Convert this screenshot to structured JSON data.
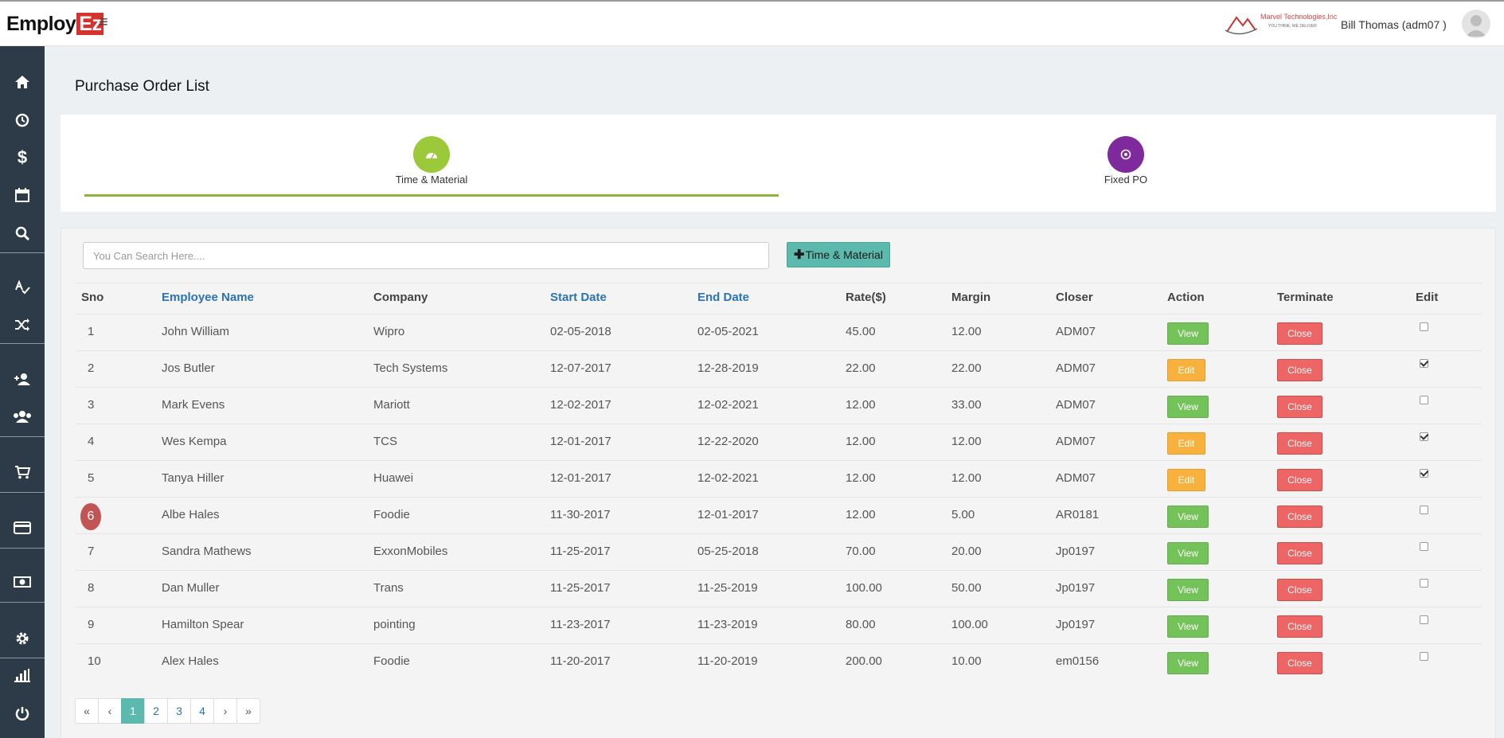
{
  "brand": {
    "logo_main": "Employ",
    "logo_accent": "Ez"
  },
  "header": {
    "company_name": "Marvel Technologies,Inc",
    "company_tagline": "YOU THINK, WE DELIVER",
    "user_name": "Bill Thomas (adm07 )"
  },
  "sidebar": {
    "items": [
      "home-icon",
      "clock-icon",
      "dollar-icon",
      "calendar-icon",
      "search-icon",
      "spell-check-icon",
      "shuffle-icon",
      "add-user-icon",
      "users-icon",
      "cart-icon",
      "credit-card-icon",
      "money-icon",
      "gear-icon",
      "bar-chart-icon",
      "power-icon"
    ]
  },
  "page": {
    "title": "Purchase Order List"
  },
  "tabs": [
    {
      "label": "Time & Material",
      "color": "#9bc93a",
      "active": true
    },
    {
      "label": "Fixed PO",
      "color": "#7e2a9c",
      "active": false
    }
  ],
  "search": {
    "placeholder": "You Can Search Here....",
    "value": ""
  },
  "add_button": {
    "label": "Time & Material"
  },
  "table": {
    "headers": {
      "sno": "Sno",
      "employee": "Employee Name",
      "company": "Company",
      "start": "Start Date",
      "end": "End Date",
      "rate": "Rate($)",
      "margin": "Margin",
      "closer": "Closer",
      "action": "Action",
      "terminate": "Terminate",
      "edit": "Edit"
    },
    "rows": [
      {
        "sno": "1",
        "employee": "John William",
        "company": "Wipro",
        "start": "02-05-2018",
        "end": "02-05-2021",
        "rate": "45.00",
        "margin": "12.00",
        "closer": "ADM07",
        "action": "View",
        "terminate": "Close",
        "edit_checked": false,
        "highlight": false
      },
      {
        "sno": "2",
        "employee": "Jos Butler",
        "company": "Tech Systems",
        "start": "12-07-2017",
        "end": "12-28-2019",
        "rate": "22.00",
        "margin": "22.00",
        "closer": "ADM07",
        "action": "Edit",
        "terminate": "Close",
        "edit_checked": true,
        "highlight": false
      },
      {
        "sno": "3",
        "employee": "Mark Evens",
        "company": "Mariott",
        "start": "12-02-2017",
        "end": "12-02-2021",
        "rate": "12.00",
        "margin": "33.00",
        "closer": "ADM07",
        "action": "View",
        "terminate": "Close",
        "edit_checked": false,
        "highlight": false
      },
      {
        "sno": "4",
        "employee": "Wes Kempa",
        "company": "TCS",
        "start": "12-01-2017",
        "end": "12-22-2020",
        "rate": "12.00",
        "margin": "12.00",
        "closer": "ADM07",
        "action": "Edit",
        "terminate": "Close",
        "edit_checked": true,
        "highlight": false
      },
      {
        "sno": "5",
        "employee": "Tanya Hiller",
        "company": "Huawei",
        "start": "12-01-2017",
        "end": "12-02-2021",
        "rate": "12.00",
        "margin": "12.00",
        "closer": "ADM07",
        "action": "Edit",
        "terminate": "Close",
        "edit_checked": true,
        "highlight": false
      },
      {
        "sno": "6",
        "employee": "Albe Hales",
        "company": "Foodie",
        "start": "11-30-2017",
        "end": "12-01-2017",
        "rate": "12.00",
        "margin": "5.00",
        "closer": "AR0181",
        "action": "View",
        "terminate": "Close",
        "edit_checked": false,
        "highlight": true
      },
      {
        "sno": "7",
        "employee": "Sandra Mathews",
        "company": "ExxonMobiles",
        "start": "11-25-2017",
        "end": "05-25-2018",
        "rate": "70.00",
        "margin": "20.00",
        "closer": "Jp0197",
        "action": "View",
        "terminate": "Close",
        "edit_checked": false,
        "highlight": false
      },
      {
        "sno": "8",
        "employee": "Dan Muller",
        "company": "Trans",
        "start": "11-25-2017",
        "end": "11-25-2019",
        "rate": "100.00",
        "margin": "50.00",
        "closer": "Jp0197",
        "action": "View",
        "terminate": "Close",
        "edit_checked": false,
        "highlight": false
      },
      {
        "sno": "9",
        "employee": "Hamilton Spear",
        "company": "pointing",
        "start": "11-23-2017",
        "end": "11-23-2019",
        "rate": "80.00",
        "margin": "100.00",
        "closer": "Jp0197",
        "action": "View",
        "terminate": "Close",
        "edit_checked": false,
        "highlight": false
      },
      {
        "sno": "10",
        "employee": "Alex Hales",
        "company": "Foodie",
        "start": "11-20-2017",
        "end": "11-20-2019",
        "rate": "200.00",
        "margin": "10.00",
        "closer": "em0156",
        "action": "View",
        "terminate": "Close",
        "edit_checked": false,
        "highlight": false
      }
    ]
  },
  "pagination": {
    "items": [
      {
        "label": "«",
        "kind": "first"
      },
      {
        "label": "‹",
        "kind": "prev"
      },
      {
        "label": "1",
        "kind": "page",
        "active": true
      },
      {
        "label": "2",
        "kind": "page"
      },
      {
        "label": "3",
        "kind": "page"
      },
      {
        "label": "4",
        "kind": "page"
      },
      {
        "label": "›",
        "kind": "next"
      },
      {
        "label": "»",
        "kind": "last"
      }
    ]
  }
}
